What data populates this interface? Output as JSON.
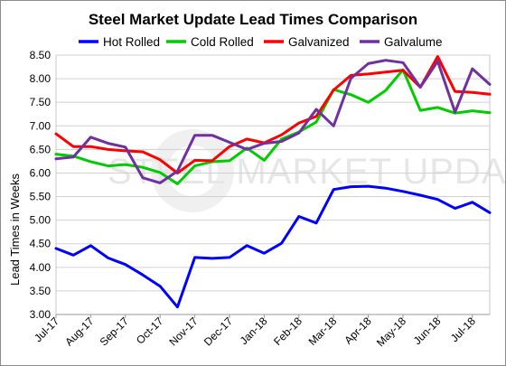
{
  "chart_data": {
    "type": "line",
    "title": "Steel Market Update Lead Times Comparison",
    "xlabel": "",
    "ylabel": "Lead Times in Weeks",
    "ylim": [
      3.0,
      8.5
    ],
    "yticks": [
      "3.00",
      "3.50",
      "4.00",
      "4.50",
      "5.00",
      "5.50",
      "6.00",
      "6.50",
      "7.00",
      "7.50",
      "8.00",
      "8.50"
    ],
    "grid": "horizontal",
    "legend_position": "top",
    "watermark": "STEEL MARKET UPDATE",
    "x_tick_labels": [
      "Jul-17",
      "Aug-17",
      "Sep-17",
      "Oct-17",
      "Nov-17",
      "Dec-17",
      "Jan-18",
      "Feb-18",
      "Mar-18",
      "Apr-18",
      "May-18",
      "Jun-18",
      "Jul-18"
    ],
    "points_per_month": 2,
    "series": [
      {
        "name": "Hot Rolled",
        "color": "#0000ff",
        "values": [
          4.4,
          4.26,
          4.46,
          4.2,
          4.06,
          3.84,
          3.6,
          3.16,
          4.21,
          4.19,
          4.21,
          4.46,
          4.3,
          4.51,
          5.08,
          4.94,
          5.65,
          5.71,
          5.72,
          5.68,
          5.61,
          5.53,
          5.44,
          5.25,
          5.38,
          5.16
        ]
      },
      {
        "name": "Cold Rolled",
        "color": "#00cc00",
        "values": [
          6.4,
          6.36,
          6.24,
          6.15,
          6.18,
          6.12,
          6.01,
          5.77,
          6.15,
          6.24,
          6.26,
          6.53,
          6.27,
          6.72,
          6.87,
          7.08,
          7.77,
          7.66,
          7.5,
          7.75,
          8.19,
          7.33,
          7.39,
          7.27,
          7.32,
          7.28
        ]
      },
      {
        "name": "Galvanized",
        "color": "#ff0000",
        "values": [
          6.83,
          6.56,
          6.56,
          6.5,
          6.47,
          6.45,
          6.28,
          6.0,
          6.27,
          6.26,
          6.56,
          6.72,
          6.64,
          6.81,
          7.06,
          7.2,
          7.76,
          8.07,
          8.1,
          8.14,
          8.18,
          7.82,
          8.47,
          7.73,
          7.71,
          7.67
        ]
      },
      {
        "name": "Galvalume",
        "color": "#7030a0",
        "values": [
          6.3,
          6.34,
          6.76,
          6.63,
          6.55,
          5.9,
          5.79,
          6.04,
          6.8,
          6.8,
          6.65,
          6.5,
          6.63,
          6.67,
          6.85,
          7.35,
          7.0,
          8.01,
          8.32,
          8.39,
          8.34,
          7.82,
          8.37,
          7.29,
          8.21,
          7.88
        ]
      }
    ]
  }
}
